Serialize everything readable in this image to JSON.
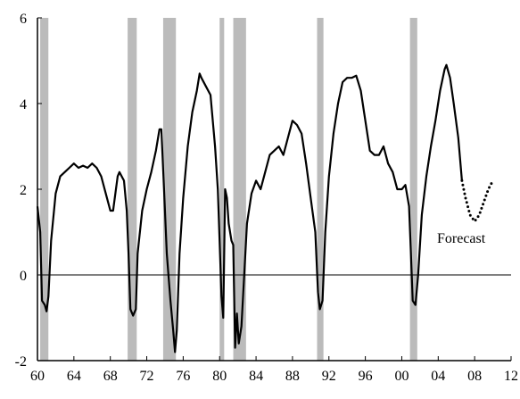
{
  "chart_data": {
    "type": "line",
    "annotation": "Forecast",
    "xlim": [
      1960,
      2012
    ],
    "xticks": [
      {
        "value": 1960,
        "label": "60"
      },
      {
        "value": 1964,
        "label": "64"
      },
      {
        "value": 1968,
        "label": "68"
      },
      {
        "value": 1972,
        "label": "72"
      },
      {
        "value": 1976,
        "label": "76"
      },
      {
        "value": 1980,
        "label": "80"
      },
      {
        "value": 1984,
        "label": "84"
      },
      {
        "value": 1988,
        "label": "88"
      },
      {
        "value": 1992,
        "label": "92"
      },
      {
        "value": 1996,
        "label": "96"
      },
      {
        "value": 2000,
        "label": "00"
      },
      {
        "value": 2004,
        "label": "04"
      },
      {
        "value": 2008,
        "label": "08"
      },
      {
        "value": 2012,
        "label": "12"
      }
    ],
    "ylim": [
      -2,
      6
    ],
    "yticks": [
      -2,
      0,
      2,
      4,
      6
    ],
    "zero_line": true,
    "recession_color": "#bbbbbb",
    "recessions": [
      {
        "start": 1960.3,
        "end": 1961.2
      },
      {
        "start": 1969.9,
        "end": 1970.9
      },
      {
        "start": 1973.8,
        "end": 1975.2
      },
      {
        "start": 1980.0,
        "end": 1980.5
      },
      {
        "start": 1981.5,
        "end": 1982.9
      },
      {
        "start": 1990.7,
        "end": 1991.4
      },
      {
        "start": 2000.9,
        "end": 2001.7
      }
    ],
    "series": [
      {
        "color": "#000000",
        "style": "solid",
        "x": [
          1960.0,
          1960.3,
          1960.5,
          1960.8,
          1961.0,
          1961.2,
          1961.5,
          1962.0,
          1962.5,
          1963.0,
          1963.5,
          1964.0,
          1964.5,
          1965.0,
          1965.5,
          1966.0,
          1966.5,
          1967.0,
          1967.5,
          1968.0,
          1968.3,
          1968.8,
          1969.0,
          1969.5,
          1969.8,
          1970.0,
          1970.2,
          1970.5,
          1970.8,
          1971.0,
          1971.5,
          1972.0,
          1972.5,
          1973.0,
          1973.4,
          1973.6,
          1973.9,
          1974.2,
          1974.6,
          1974.9,
          1975.1,
          1975.3,
          1975.6,
          1976.0,
          1976.5,
          1977.0,
          1977.5,
          1977.8,
          1978.0,
          1978.5,
          1979.0,
          1979.5,
          1979.8,
          1980.0,
          1980.2,
          1980.4,
          1980.6,
          1980.8,
          1981.0,
          1981.3,
          1981.5,
          1981.7,
          1981.9,
          1982.1,
          1982.4,
          1982.7,
          1983.0,
          1983.5,
          1984.0,
          1984.5,
          1985.0,
          1985.5,
          1986.0,
          1986.5,
          1987.0,
          1987.5,
          1988.0,
          1988.5,
          1989.0,
          1989.5,
          1990.0,
          1990.5,
          1990.8,
          1991.0,
          1991.3,
          1991.6,
          1992.0,
          1992.5,
          1993.0,
          1993.5,
          1994.0,
          1994.5,
          1995.0,
          1995.5,
          1996.0,
          1996.5,
          1997.0,
          1997.5,
          1998.0,
          1998.5,
          1999.0,
          1999.5,
          2000.0,
          2000.4,
          2000.8,
          2001.0,
          2001.2,
          2001.5,
          2001.8,
          2002.2,
          2002.7,
          2003.2,
          2003.7,
          2004.2,
          2004.7,
          2004.9,
          2005.3,
          2005.7,
          2006.2,
          2006.6
        ],
        "values": [
          1.6,
          1.0,
          -0.6,
          -0.7,
          -0.85,
          -0.5,
          0.8,
          1.9,
          2.3,
          2.4,
          2.5,
          2.6,
          2.5,
          2.55,
          2.5,
          2.6,
          2.5,
          2.3,
          1.9,
          1.5,
          1.5,
          2.3,
          2.4,
          2.2,
          1.5,
          0.5,
          -0.8,
          -0.95,
          -0.8,
          0.5,
          1.5,
          2.0,
          2.4,
          2.9,
          3.4,
          3.4,
          2.0,
          0.5,
          -0.6,
          -1.3,
          -1.8,
          -1.3,
          0.5,
          1.8,
          3.0,
          3.8,
          4.3,
          4.7,
          4.6,
          4.4,
          4.2,
          3.0,
          2.0,
          0.8,
          -0.5,
          -1.0,
          2.0,
          1.8,
          1.2,
          0.8,
          0.7,
          -1.7,
          -0.9,
          -1.6,
          -1.2,
          0.0,
          1.2,
          1.9,
          2.2,
          2.0,
          2.4,
          2.8,
          2.9,
          3.0,
          2.8,
          3.2,
          3.6,
          3.5,
          3.3,
          2.6,
          1.8,
          1.0,
          -0.4,
          -0.8,
          -0.6,
          1.0,
          2.3,
          3.3,
          4.0,
          4.5,
          4.6,
          4.6,
          4.65,
          4.3,
          3.6,
          2.9,
          2.8,
          2.8,
          3.0,
          2.6,
          2.4,
          2.0,
          2.0,
          2.1,
          1.6,
          0.5,
          -0.6,
          -0.7,
          0.0,
          1.4,
          2.3,
          3.0,
          3.6,
          4.3,
          4.8,
          4.9,
          4.6,
          4.0,
          3.2,
          2.2
        ]
      },
      {
        "color": "#000000",
        "style": "dotted",
        "x": [
          2006.6,
          2007.0,
          2007.5,
          2008.0,
          2008.5,
          2009.0,
          2009.5,
          2010.0
        ],
        "values": [
          2.2,
          1.8,
          1.4,
          1.25,
          1.4,
          1.7,
          2.0,
          2.2
        ]
      }
    ]
  }
}
